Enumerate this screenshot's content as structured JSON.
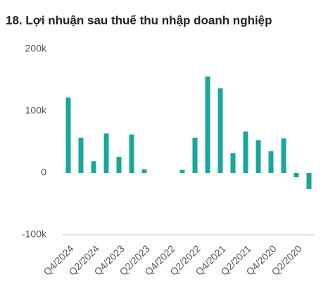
{
  "chart_data": {
    "type": "bar",
    "title": "18. Lợi nhuận sau thuế thu nhập doanh nghiệp",
    "categories": [
      "Q4/2024",
      null,
      "Q2/2024",
      null,
      "Q4/2023",
      null,
      "Q2/2023",
      null,
      "Q4/2022",
      null,
      "Q2/2022",
      null,
      "Q4/2021",
      null,
      "Q2/2021",
      null,
      "Q4/2020",
      null,
      "Q2/2020",
      null
    ],
    "values": [
      122000,
      57000,
      19000,
      64000,
      26000,
      62000,
      6000,
      null,
      null,
      5000,
      57000,
      156000,
      137000,
      32000,
      67000,
      53000,
      35000,
      56000,
      -7000,
      -26000
    ],
    "color": "#17a89a",
    "ylim": [
      -100000,
      200000
    ],
    "yticks": [
      {
        "value": -100000,
        "label": "-100k"
      },
      {
        "value": 0,
        "label": "0"
      },
      {
        "value": 100000,
        "label": "100k"
      },
      {
        "value": 200000,
        "label": "200k"
      }
    ]
  }
}
